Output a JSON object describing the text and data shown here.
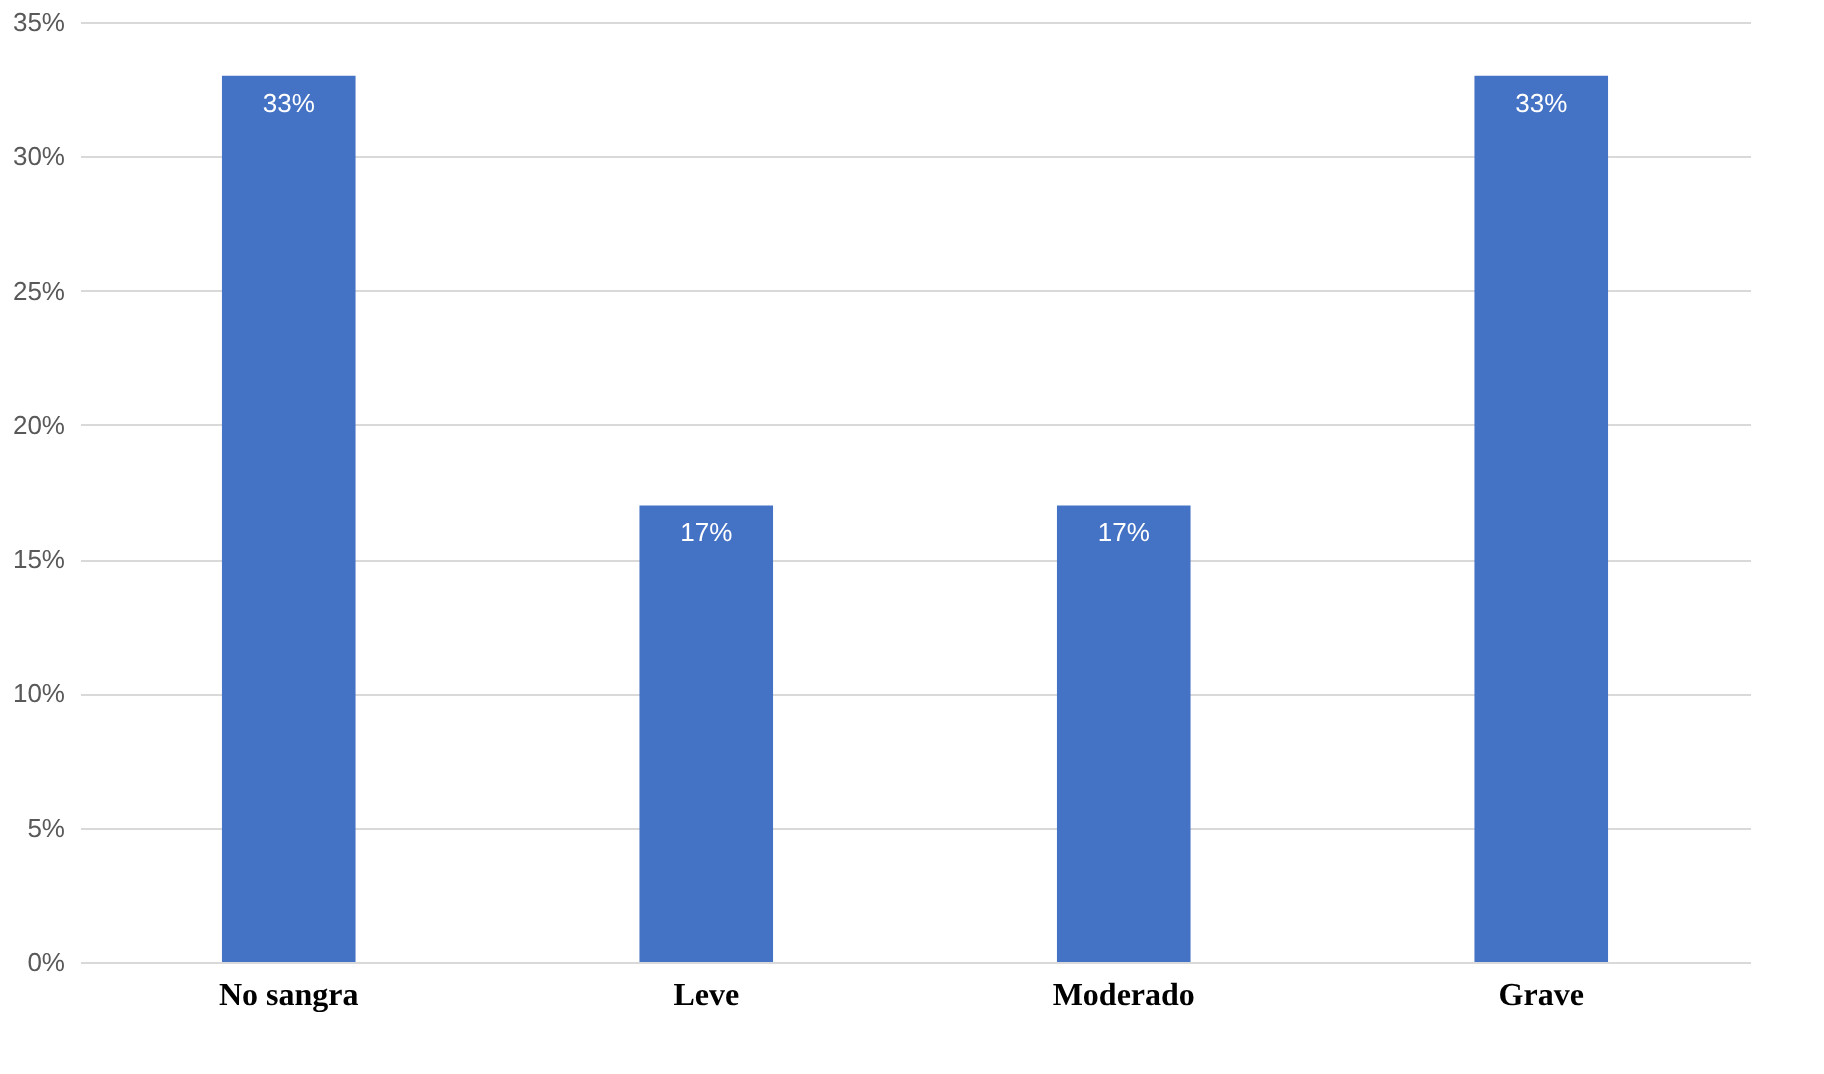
{
  "chart_data": {
    "type": "bar",
    "categories": [
      "No sangra",
      "Leve",
      "Moderado",
      "Grave"
    ],
    "values": [
      33,
      17,
      17,
      33
    ],
    "color": "#4472c4",
    "value_labels": [
      "33%",
      "17%",
      "17%",
      "33%"
    ],
    "ylim": [
      0,
      35
    ],
    "yticks": [
      {
        "value": 0,
        "label": "0%"
      },
      {
        "value": 5,
        "label": "5%"
      },
      {
        "value": 10,
        "label": "10%"
      },
      {
        "value": 15,
        "label": "15%"
      },
      {
        "value": 20,
        "label": "20%"
      },
      {
        "value": 25,
        "label": "25%"
      },
      {
        "value": 30,
        "label": "30%"
      },
      {
        "value": 35,
        "label": "35%"
      }
    ],
    "grid": "y"
  }
}
